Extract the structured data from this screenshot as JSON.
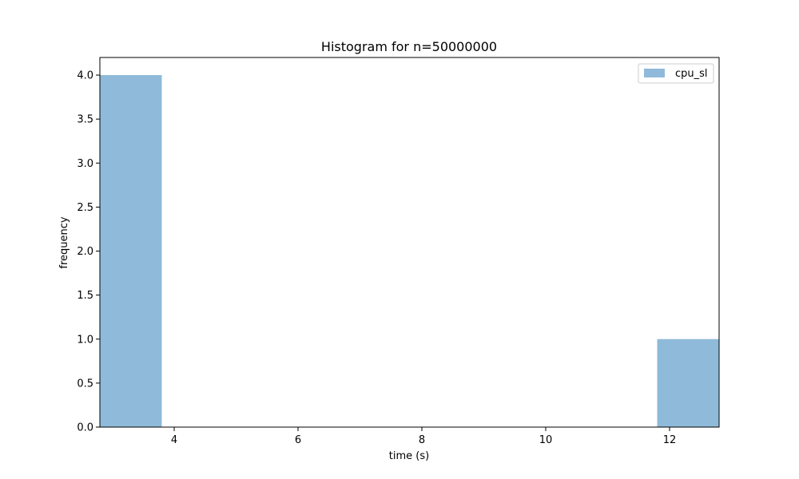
{
  "chart_data": {
    "type": "bar",
    "title": "Histogram for n=50000000",
    "xlabel": "time (s)",
    "ylabel": "frequency",
    "xlim": [
      2.8,
      12.8
    ],
    "ylim": [
      0,
      4.2
    ],
    "x_ticks": [
      "4",
      "6",
      "8",
      "10",
      "12"
    ],
    "x_tick_values": [
      4,
      6,
      8,
      10,
      12
    ],
    "y_ticks": [
      "0.0",
      "0.5",
      "1.0",
      "1.5",
      "2.0",
      "2.5",
      "3.0",
      "3.5",
      "4.0"
    ],
    "y_tick_values": [
      0,
      0.5,
      1.0,
      1.5,
      2.0,
      2.5,
      3.0,
      3.5,
      4.0
    ],
    "bin_edges": [
      2.8,
      3.8,
      4.8,
      5.8,
      6.8,
      7.8,
      8.8,
      9.8,
      10.8,
      11.8,
      12.8
    ],
    "series": [
      {
        "name": "cpu_sl",
        "values": [
          4,
          0,
          0,
          0,
          0,
          0,
          0,
          0,
          0,
          1
        ],
        "color": "#8fbad9"
      }
    ],
    "legend_position": "upper right",
    "grid": false
  }
}
